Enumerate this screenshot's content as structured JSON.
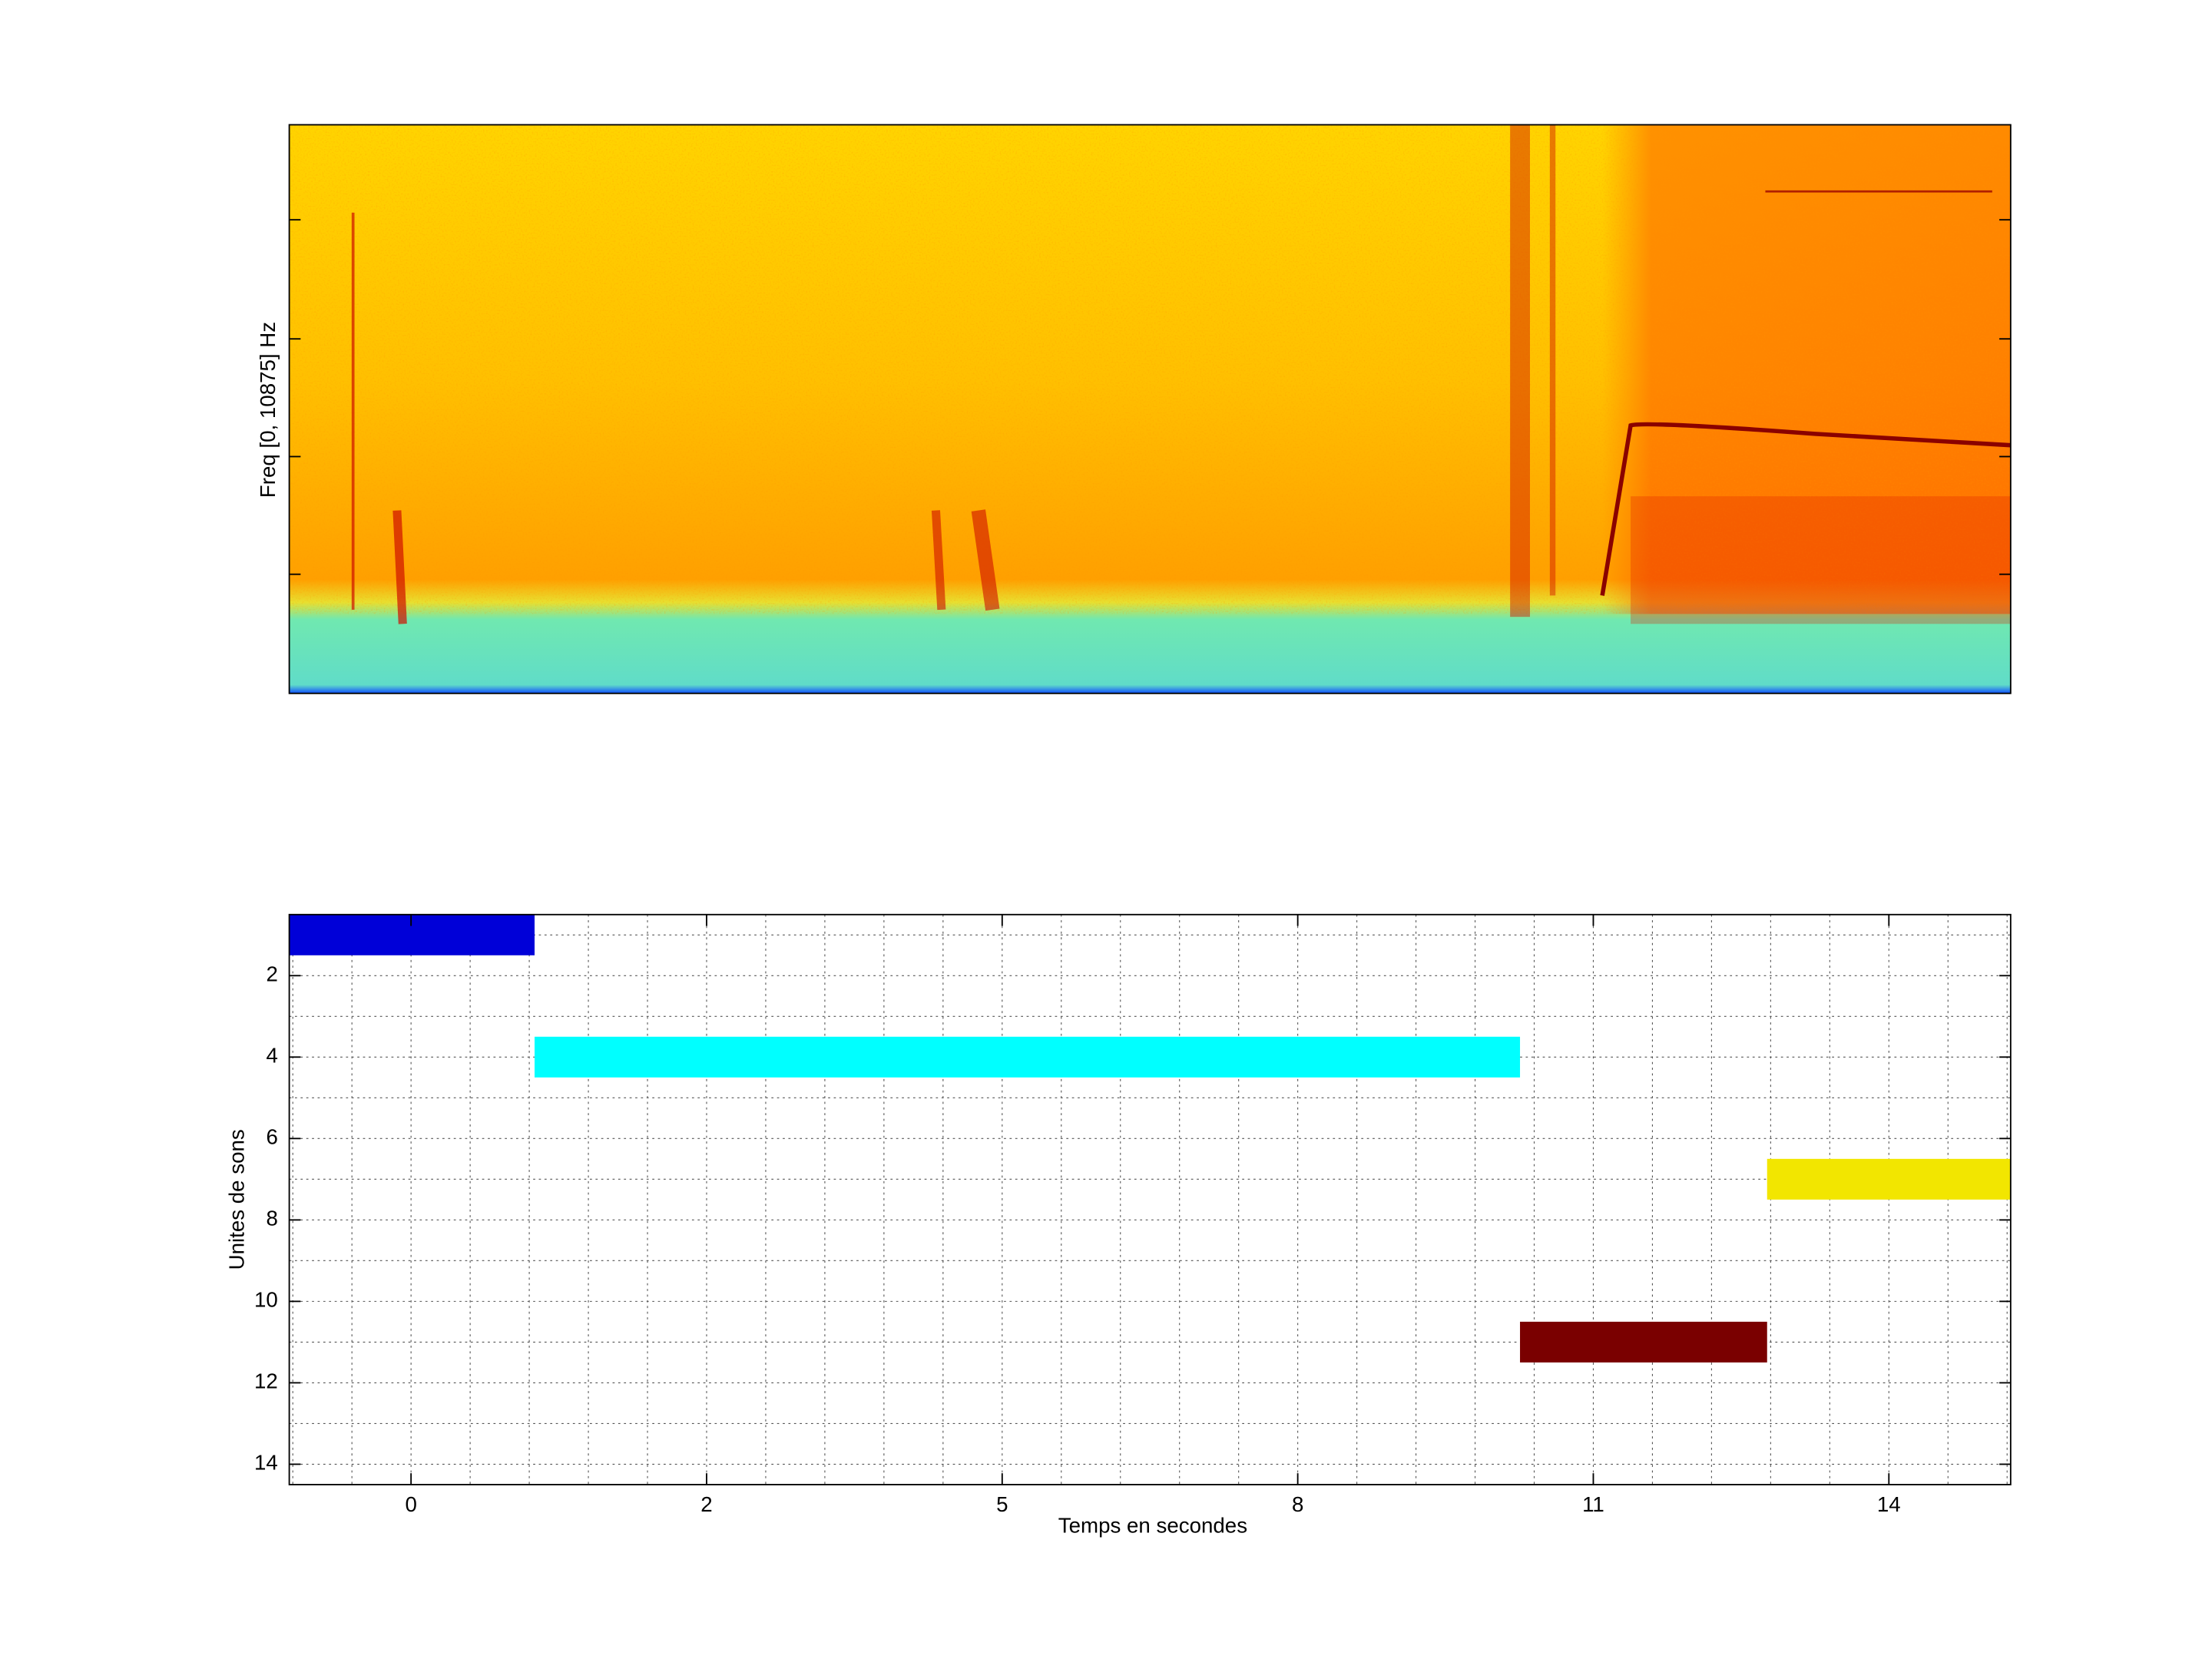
{
  "chart_data": [
    {
      "type": "spectrogram",
      "ylabel": "Freq [0, 10875] Hz"
    },
    {
      "type": "timeline",
      "xlabel": "Temps en secondes",
      "ylabel": "Unites de sons",
      "xlim": [
        -2.06,
        27.06
      ],
      "xticks": [
        {
          "value": 0,
          "label": "0"
        },
        {
          "value": 5,
          "label": "2"
        },
        {
          "value": 10,
          "label": "5"
        },
        {
          "value": 15,
          "label": "8"
        },
        {
          "value": 20,
          "label": "11"
        },
        {
          "value": 25,
          "label": "14"
        }
      ],
      "xminorticks": [
        -2,
        -1,
        0,
        1,
        2,
        3,
        4,
        5,
        6,
        7,
        8,
        9,
        10,
        11,
        12,
        13,
        14,
        15,
        16,
        17,
        18,
        19,
        20,
        21,
        22,
        23,
        24,
        25,
        26,
        27
      ],
      "ylim": [
        0.5,
        14.5
      ],
      "y_reversed": true,
      "yticks": [
        2,
        4,
        6,
        8,
        10,
        12,
        14
      ],
      "yminorticks": [
        1,
        3,
        5,
        7,
        9,
        11,
        13
      ],
      "grid": true,
      "bars": [
        {
          "start": -2.06,
          "end": 2.09,
          "y": 1,
          "color": "#0000d8"
        },
        {
          "start": 2.09,
          "end": 18.76,
          "y": 4,
          "color": "#00ffff"
        },
        {
          "start": 22.94,
          "end": 27.06,
          "y": 7,
          "color": "#f2e600"
        },
        {
          "start": 18.76,
          "end": 22.94,
          "y": 11,
          "color": "#7a0000"
        }
      ]
    }
  ]
}
